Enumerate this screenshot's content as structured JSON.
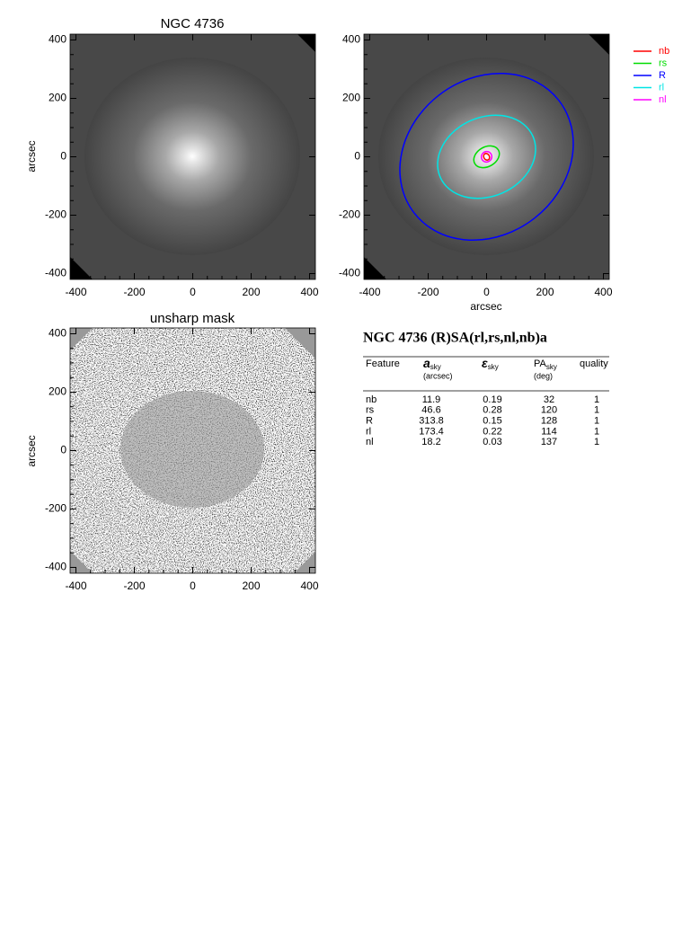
{
  "panels": [
    {
      "title": "NGC 4736",
      "ylabel": "arcsec"
    },
    {
      "xlabel": "arcsec"
    },
    {
      "title": "unsharp mask",
      "ylabel": "arcsec"
    }
  ],
  "axis": {
    "lim": [
      -420,
      420
    ],
    "ticks": [
      -400,
      -200,
      0,
      200,
      400
    ]
  },
  "legend": [
    {
      "label": "nb",
      "color": "#ff0000"
    },
    {
      "label": "rs",
      "color": "#00dd00"
    },
    {
      "label": "R",
      "color": "#0000ff"
    },
    {
      "label": "rl",
      "color": "#00e5e5"
    },
    {
      "label": "nl",
      "color": "#ff00ff"
    }
  ],
  "table": {
    "title": "NGC 4736  (R)SA(rl,rs,nl,nb)a",
    "columns": [
      {
        "main": "Feature"
      },
      {
        "main": "a",
        "sub": "sky",
        "unit": "(arcsec)"
      },
      {
        "main": "ε",
        "sub": "sky"
      },
      {
        "main": "PA",
        "sub": "sky",
        "unit": "(deg)"
      },
      {
        "main": "quality"
      }
    ],
    "rows": [
      [
        "nb",
        11.9,
        0.19,
        32,
        1
      ],
      [
        "rs",
        46.6,
        0.28,
        120,
        1
      ],
      [
        "R",
        313.8,
        0.15,
        128,
        1
      ],
      [
        "rl",
        173.4,
        0.22,
        114,
        1
      ],
      [
        "nl",
        18.2,
        0.03,
        137,
        1
      ]
    ]
  }
}
